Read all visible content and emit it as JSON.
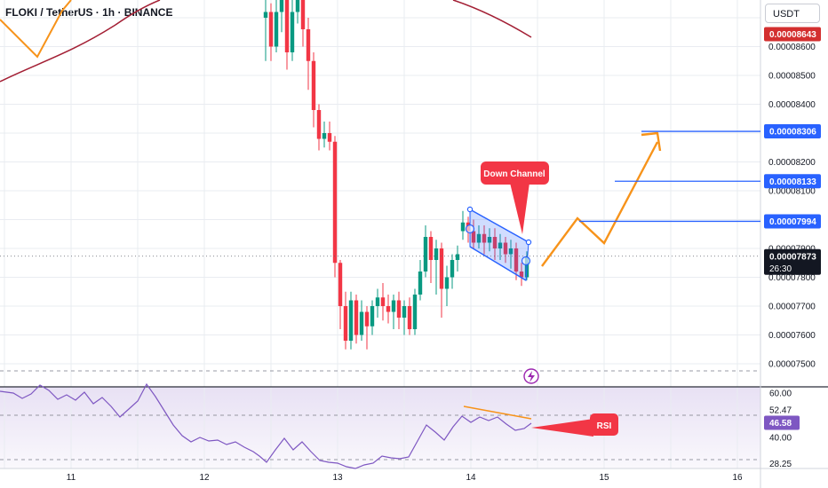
{
  "header": {
    "title": "FLOKI / TetherUS · 1h · BINANCE",
    "currency": "USDT"
  },
  "chart_data": [
    {
      "type": "candlestick",
      "title": "FLOKI / TetherUS · 1h · BINANCE",
      "y_ticks": [
        "0.00008600",
        "0.00008500",
        "0.00008400",
        "0.00008300",
        "0.00008200",
        "0.00008100",
        "0.00007900",
        "0.00007800",
        "0.00007700",
        "0.00007600",
        "0.00007500"
      ],
      "x_ticks": [
        "11",
        "12",
        "13",
        "14",
        "15",
        "16"
      ],
      "price_labels": [
        {
          "text": "0.00008643",
          "color": "#d32f2f"
        },
        {
          "text": "0.00008306",
          "color": "#2962ff"
        },
        {
          "text": "0.00008133",
          "color": "#2962ff"
        },
        {
          "text": "0.00007994",
          "color": "#2962ff"
        },
        {
          "text": "0.00007873",
          "color": "#131722"
        }
      ],
      "countdown": "26:30",
      "annotations": [
        {
          "text": "Down Channel",
          "color": "#f23645"
        }
      ],
      "lightning_icon": "lightning-icon",
      "colors": {
        "up": "#089981",
        "down": "#f23645",
        "ma": "#a31f34",
        "projection": "#f7931a",
        "channel": "#2962ff"
      }
    },
    {
      "type": "line",
      "name": "RSI",
      "y_ticks": [
        "60.00",
        "52.47",
        "46.58",
        "40.00",
        "28.25"
      ],
      "current": "46.58",
      "label": "RSI",
      "colors": {
        "line": "#7e57c2",
        "label": "#f23645",
        "divergence": "#f7931a"
      }
    }
  ]
}
